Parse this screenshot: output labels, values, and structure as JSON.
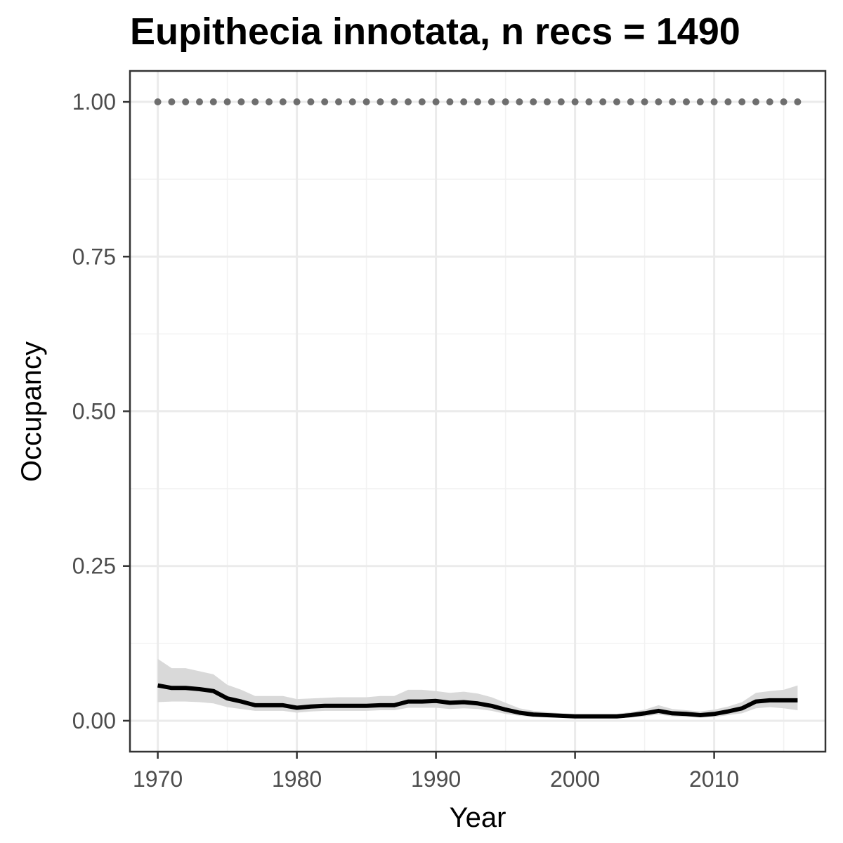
{
  "chart_data": {
    "type": "line",
    "title": "Eupithecia innotata, n recs = 1490",
    "xlabel": "Year",
    "ylabel": "Occupancy",
    "xlim": [
      1968,
      2018
    ],
    "ylim": [
      -0.05,
      1.05
    ],
    "x_ticks": [
      1970,
      1980,
      1990,
      2000,
      2010
    ],
    "x_tick_labels": [
      "1970",
      "1980",
      "1990",
      "2000",
      "2010"
    ],
    "y_ticks": [
      0,
      0.25,
      0.5,
      0.75,
      1.0
    ],
    "y_tick_labels": [
      "0.00",
      "0.25",
      "0.50",
      "0.75",
      "1.00"
    ],
    "x_minor_ticks": [
      1975,
      1985,
      1995,
      2005,
      2015
    ],
    "y_minor_ticks": [
      0.125,
      0.375,
      0.625,
      0.875
    ],
    "grid": true,
    "legend": "none",
    "x": [
      1970,
      1971,
      1972,
      1973,
      1974,
      1975,
      1976,
      1977,
      1978,
      1979,
      1980,
      1981,
      1982,
      1983,
      1984,
      1985,
      1986,
      1987,
      1988,
      1989,
      1990,
      1991,
      1992,
      1993,
      1994,
      1995,
      1996,
      1997,
      1998,
      1999,
      2000,
      2001,
      2002,
      2003,
      2004,
      2005,
      2006,
      2007,
      2008,
      2009,
      2010,
      2011,
      2012,
      2013,
      2014,
      2015,
      2016
    ],
    "series": [
      {
        "values": [
          0.057,
          0.053,
          0.053,
          0.051,
          0.048,
          0.036,
          0.031,
          0.025,
          0.025,
          0.025,
          0.021,
          0.023,
          0.024,
          0.024,
          0.024,
          0.024,
          0.025,
          0.025,
          0.031,
          0.031,
          0.032,
          0.029,
          0.03,
          0.028,
          0.024,
          0.018,
          0.013,
          0.01,
          0.009,
          0.008,
          0.007,
          0.007,
          0.007,
          0.007,
          0.009,
          0.012,
          0.016,
          0.012,
          0.011,
          0.009,
          0.011,
          0.015,
          0.02,
          0.031,
          0.033,
          0.033,
          0.033
        ],
        "lower": [
          0.03,
          0.031,
          0.031,
          0.03,
          0.028,
          0.022,
          0.019,
          0.016,
          0.016,
          0.016,
          0.013,
          0.015,
          0.016,
          0.016,
          0.016,
          0.016,
          0.017,
          0.017,
          0.021,
          0.021,
          0.021,
          0.019,
          0.02,
          0.019,
          0.016,
          0.011,
          0.008,
          0.006,
          0.005,
          0.005,
          0.004,
          0.004,
          0.004,
          0.004,
          0.005,
          0.007,
          0.01,
          0.007,
          0.006,
          0.005,
          0.006,
          0.009,
          0.012,
          0.02,
          0.022,
          0.02,
          0.017
        ],
        "upper": [
          0.1,
          0.085,
          0.085,
          0.08,
          0.075,
          0.058,
          0.05,
          0.04,
          0.04,
          0.04,
          0.035,
          0.036,
          0.037,
          0.038,
          0.038,
          0.038,
          0.04,
          0.04,
          0.05,
          0.05,
          0.048,
          0.045,
          0.047,
          0.044,
          0.038,
          0.029,
          0.02,
          0.016,
          0.014,
          0.012,
          0.011,
          0.011,
          0.011,
          0.011,
          0.014,
          0.018,
          0.025,
          0.019,
          0.017,
          0.015,
          0.018,
          0.023,
          0.03,
          0.045,
          0.048,
          0.05,
          0.057
        ],
        "color": "#000000",
        "ribbon_color": "#d9d9d9"
      },
      {
        "style": "dotted",
        "values": [
          1,
          1,
          1,
          1,
          1,
          1,
          1,
          1,
          1,
          1,
          1,
          1,
          1,
          1,
          1,
          1,
          1,
          1,
          1,
          1,
          1,
          1,
          1,
          1,
          1,
          1,
          1,
          1,
          1,
          1,
          1,
          1,
          1,
          1,
          1,
          1,
          1,
          1,
          1,
          1,
          1,
          1,
          1,
          1,
          1,
          1,
          1
        ],
        "color": "#6e6e6e"
      }
    ]
  }
}
